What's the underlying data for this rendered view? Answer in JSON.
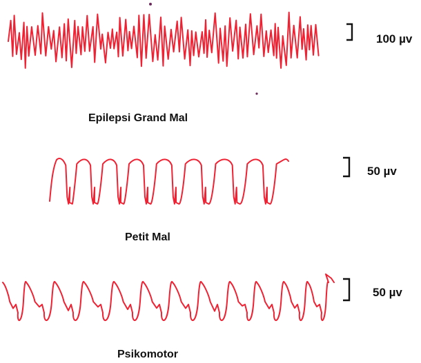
{
  "colors": {
    "trace": "#ee2233",
    "text": "#111111"
  },
  "panels": [
    {
      "name": "grand-mal",
      "caption": "Epilepsi Grand Mal",
      "scale_label": "100 µv"
    },
    {
      "name": "petit-mal",
      "caption": "Petit Mal",
      "scale_label": "50 µv"
    },
    {
      "name": "psikomotor",
      "caption": "Psikomotor",
      "scale_label": "50 µv"
    }
  ]
}
